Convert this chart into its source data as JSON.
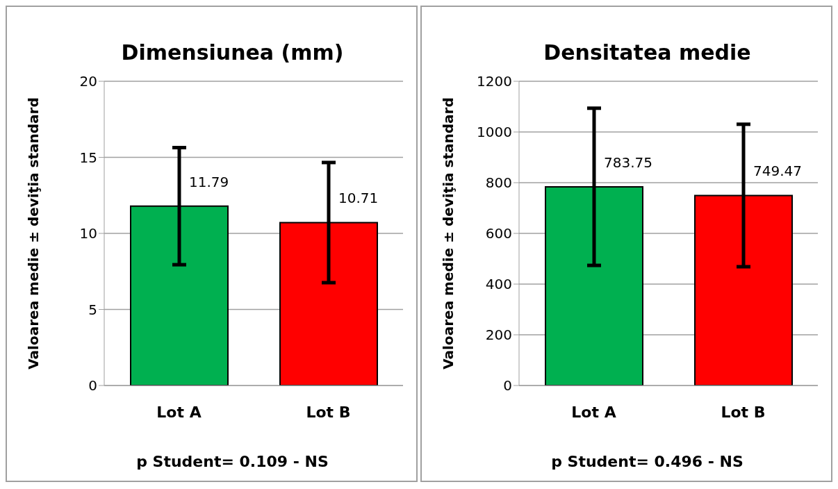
{
  "chart_data": [
    {
      "type": "bar",
      "title": "Dimensiunea (mm)",
      "ylabel": "Valoarea medie ± deviţia standard",
      "categories": [
        "Lot A",
        "Lot B"
      ],
      "values": [
        11.79,
        10.71
      ],
      "errors": [
        3.85,
        3.95
      ],
      "colors": [
        "#00b050",
        "#ff0000"
      ],
      "ylim": [
        0,
        20
      ],
      "yticks": [
        0,
        5,
        10,
        15,
        20
      ],
      "grid": "y",
      "data_labels": true,
      "annotations": [
        "p Student= 0.109 - NS"
      ]
    },
    {
      "type": "bar",
      "title": "Densitatea medie",
      "ylabel": "Valoarea medie ± deviţia standard",
      "categories": [
        "Lot A",
        "Lot B"
      ],
      "values": [
        783.75,
        749.47
      ],
      "errors": [
        310,
        281
      ],
      "colors": [
        "#00b050",
        "#ff0000"
      ],
      "ylim": [
        0,
        1200
      ],
      "yticks": [
        0,
        200,
        400,
        600,
        800,
        1000,
        1200
      ],
      "grid": "y",
      "data_labels": true,
      "annotations": [
        "p Student= 0.496 - NS"
      ]
    }
  ]
}
